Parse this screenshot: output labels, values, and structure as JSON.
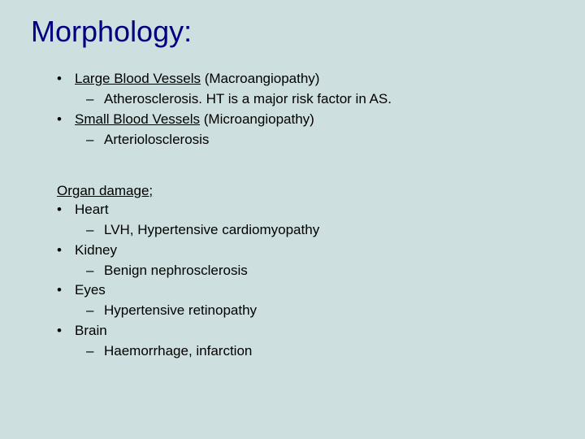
{
  "background_color": "#cde0df",
  "title_color": "#000080",
  "body_color": "#000000",
  "body_fontsize": 17,
  "title_fontsize": 36,
  "title": "Morphology:",
  "top": {
    "items": [
      {
        "underlined": "Large Blood Vessels",
        "rest": " (Macroangiopathy)",
        "sub": "Atherosclerosis. HT is a major risk factor in AS."
      },
      {
        "underlined": "Small Blood Vessels",
        "rest": " (Microangiopathy)",
        "sub": "Arteriolosclerosis"
      }
    ]
  },
  "organ_heading": "Organ damage;",
  "organ": {
    "items": [
      {
        "label": "Heart",
        "sub": "LVH, Hypertensive cardiomyopathy"
      },
      {
        "label": "Kidney",
        "sub": "Benign nephrosclerosis"
      },
      {
        "label": "Eyes",
        "sub": "Hypertensive retinopathy"
      },
      {
        "label": "Brain",
        "sub": "Haemorrhage, infarction"
      }
    ]
  }
}
